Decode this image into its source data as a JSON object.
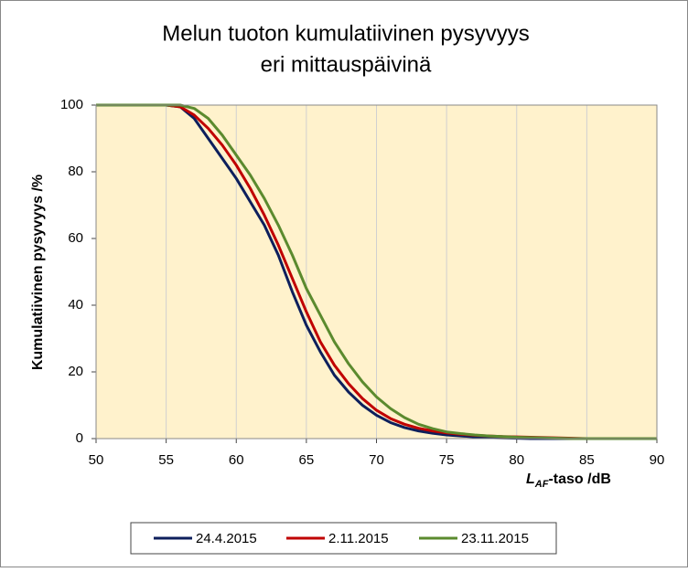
{
  "chart_data": {
    "type": "line",
    "title": [
      "Melun tuoton kumulatiivinen pysyvyys",
      "eri mittauspäivinä"
    ],
    "xlabel": {
      "main": "L",
      "subscript": "AF",
      "rest": "-taso /dB"
    },
    "ylabel": "Kumulatiivinen pysyvyys /%",
    "x": [
      50,
      51,
      52,
      53,
      54,
      55,
      56,
      57,
      58,
      59,
      60,
      61,
      62,
      63,
      64,
      65,
      66,
      67,
      68,
      69,
      70,
      71,
      72,
      73,
      74,
      75,
      76,
      77,
      78,
      79,
      80,
      81,
      82,
      83,
      84,
      85,
      86,
      87,
      88,
      89,
      90
    ],
    "series": [
      {
        "name": "24.4.2015",
        "color": "#0d1f5c",
        "values": [
          100,
          100,
          100,
          100,
          100,
          100,
          99.5,
          96,
          90,
          84,
          78,
          71,
          64,
          55,
          44,
          34,
          26,
          19,
          14,
          10,
          7,
          4.8,
          3.3,
          2.3,
          1.6,
          1.1,
          0.8,
          0.5,
          0.3,
          0.2,
          0.1,
          0,
          0,
          0,
          0,
          0,
          0,
          0,
          0,
          0,
          0
        ]
      },
      {
        "name": "2.11.2015",
        "color": "#c00000",
        "values": [
          100,
          100,
          100,
          100,
          100,
          100,
          99.5,
          97,
          93,
          88,
          82,
          75,
          67,
          58,
          48,
          38,
          29,
          22,
          16.5,
          12,
          8.5,
          6,
          4.3,
          3.1,
          2.3,
          1.7,
          1.3,
          1,
          0.8,
          0.6,
          0.5,
          0.4,
          0.3,
          0.2,
          0.1,
          0,
          0,
          0,
          0,
          0,
          0
        ]
      },
      {
        "name": "23.11.2015",
        "color": "#5b8a2e",
        "values": [
          100,
          100,
          100,
          100,
          100,
          100,
          100,
          99,
          96,
          91,
          85,
          79,
          72,
          64,
          55,
          45,
          37,
          29,
          22.5,
          17,
          12.5,
          9,
          6.3,
          4.3,
          3,
          2,
          1.5,
          1.1,
          0.8,
          0.6,
          0.4,
          0.3,
          0.2,
          0.1,
          0,
          0,
          0,
          0,
          0,
          0,
          0
        ]
      }
    ],
    "xlim": [
      50,
      90
    ],
    "xticks": [
      50,
      55,
      60,
      65,
      70,
      75,
      80,
      85,
      90
    ],
    "ylim": [
      0,
      100
    ],
    "yticks": [
      0,
      20,
      40,
      60,
      80,
      100
    ],
    "grid": true,
    "plot_background": "#fff2cc"
  }
}
